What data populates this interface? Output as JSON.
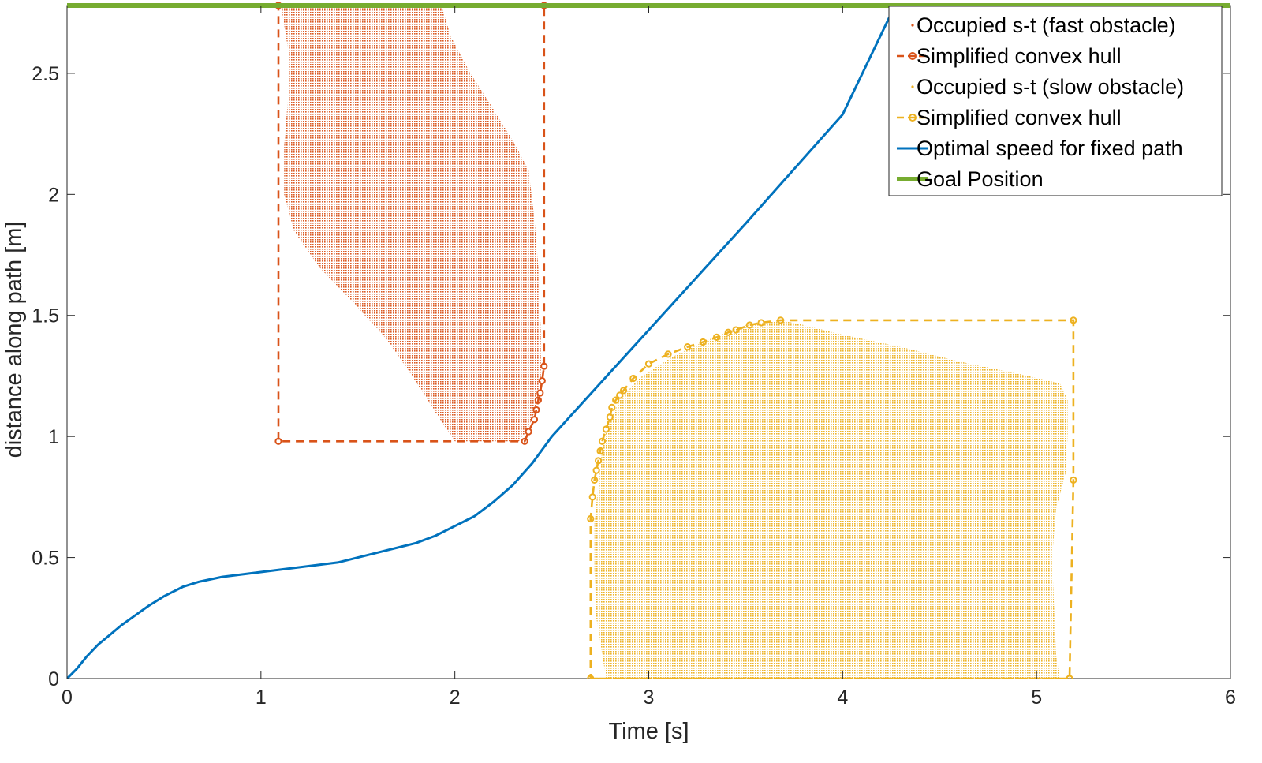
{
  "chart_data": {
    "type": "line",
    "title": "",
    "xlabel": "Time [s]",
    "ylabel": "distance along path [m]",
    "xlim": [
      0,
      6
    ],
    "ylim": [
      0,
      2.78
    ],
    "xticks": [
      0,
      1,
      2,
      3,
      4,
      5,
      6
    ],
    "yticks": [
      0,
      0.5,
      1,
      1.5,
      2,
      2.5
    ],
    "xtick_labels": [
      "0",
      "1",
      "2",
      "3",
      "4",
      "5",
      "6"
    ],
    "ytick_labels": [
      "0",
      "0.5",
      "1",
      "1.5",
      "2",
      "2.5"
    ],
    "grid": false,
    "legend_position": "top-right",
    "series": [
      {
        "name": "Occupied s-t (fast obstacle)",
        "kind": "filled-region",
        "color": "#D95319",
        "polygon": [
          [
            1.1,
            2.78
          ],
          [
            1.93,
            2.78
          ],
          [
            1.98,
            2.65
          ],
          [
            2.08,
            2.5
          ],
          [
            2.2,
            2.35
          ],
          [
            2.3,
            2.22
          ],
          [
            2.38,
            2.1
          ],
          [
            2.41,
            1.9
          ],
          [
            2.43,
            1.7
          ],
          [
            2.44,
            1.5
          ],
          [
            2.45,
            1.3
          ],
          [
            2.44,
            1.2
          ],
          [
            2.41,
            1.1
          ],
          [
            2.37,
            1.02
          ],
          [
            2.33,
            0.98
          ],
          [
            2.0,
            0.98
          ],
          [
            1.9,
            1.1
          ],
          [
            1.78,
            1.25
          ],
          [
            1.65,
            1.4
          ],
          [
            1.48,
            1.55
          ],
          [
            1.3,
            1.7
          ],
          [
            1.17,
            1.85
          ],
          [
            1.12,
            2.0
          ],
          [
            1.12,
            2.2
          ],
          [
            1.14,
            2.4
          ],
          [
            1.14,
            2.6
          ],
          [
            1.12,
            2.7
          ]
        ]
      },
      {
        "name": "Simplified convex hull",
        "kind": "hull",
        "color": "#D95319",
        "points": [
          [
            1.09,
            2.78
          ],
          [
            2.46,
            2.78
          ],
          [
            2.46,
            1.29
          ],
          [
            2.45,
            1.23
          ],
          [
            2.44,
            1.18
          ],
          [
            2.43,
            1.15
          ],
          [
            2.42,
            1.11
          ],
          [
            2.41,
            1.07
          ],
          [
            2.38,
            1.02
          ],
          [
            2.36,
            0.98
          ],
          [
            1.09,
            0.98
          ],
          [
            1.09,
            2.78
          ]
        ]
      },
      {
        "name": "Occupied s-t (slow obstacle)",
        "kind": "filled-region",
        "color": "#EDB120",
        "polygon": [
          [
            2.78,
            0
          ],
          [
            5.12,
            0
          ],
          [
            5.1,
            0.1
          ],
          [
            5.09,
            0.3
          ],
          [
            5.08,
            0.5
          ],
          [
            5.1,
            0.7
          ],
          [
            5.15,
            0.85
          ],
          [
            5.16,
            1.0
          ],
          [
            5.16,
            1.15
          ],
          [
            5.12,
            1.22
          ],
          [
            4.9,
            1.26
          ],
          [
            4.6,
            1.31
          ],
          [
            4.3,
            1.37
          ],
          [
            4.0,
            1.42
          ],
          [
            3.8,
            1.46
          ],
          [
            3.68,
            1.48
          ],
          [
            3.5,
            1.46
          ],
          [
            3.4,
            1.43
          ],
          [
            3.25,
            1.38
          ],
          [
            3.1,
            1.32
          ],
          [
            2.95,
            1.24
          ],
          [
            2.85,
            1.15
          ],
          [
            2.79,
            1.05
          ],
          [
            2.76,
            0.95
          ],
          [
            2.74,
            0.8
          ],
          [
            2.72,
            0.65
          ],
          [
            2.72,
            0.45
          ],
          [
            2.73,
            0.25
          ],
          [
            2.76,
            0.1
          ]
        ]
      },
      {
        "name": "Simplified convex hull",
        "kind": "hull",
        "color": "#EDB120",
        "points": [
          [
            2.7,
            0
          ],
          [
            5.17,
            0
          ],
          [
            5.19,
            0.82
          ],
          [
            5.19,
            1.48
          ],
          [
            3.68,
            1.48
          ],
          [
            3.58,
            1.47
          ],
          [
            3.52,
            1.46
          ],
          [
            3.45,
            1.44
          ],
          [
            3.41,
            1.43
          ],
          [
            3.35,
            1.41
          ],
          [
            3.28,
            1.39
          ],
          [
            3.2,
            1.37
          ],
          [
            3.1,
            1.34
          ],
          [
            3.0,
            1.3
          ],
          [
            2.92,
            1.24
          ],
          [
            2.87,
            1.19
          ],
          [
            2.85,
            1.17
          ],
          [
            2.83,
            1.15
          ],
          [
            2.81,
            1.12
          ],
          [
            2.8,
            1.08
          ],
          [
            2.78,
            1.03
          ],
          [
            2.76,
            0.98
          ],
          [
            2.75,
            0.94
          ],
          [
            2.74,
            0.9
          ],
          [
            2.73,
            0.86
          ],
          [
            2.72,
            0.82
          ],
          [
            2.71,
            0.75
          ],
          [
            2.7,
            0.66
          ],
          [
            2.7,
            0
          ],
          [
            5.17,
            0
          ]
        ]
      },
      {
        "name": "Optimal speed for fixed path",
        "kind": "line",
        "color": "#0072BD",
        "points": [
          [
            0,
            0
          ],
          [
            0.05,
            0.04
          ],
          [
            0.1,
            0.09
          ],
          [
            0.16,
            0.14
          ],
          [
            0.22,
            0.18
          ],
          [
            0.28,
            0.22
          ],
          [
            0.35,
            0.26
          ],
          [
            0.42,
            0.3
          ],
          [
            0.5,
            0.34
          ],
          [
            0.6,
            0.38
          ],
          [
            0.68,
            0.4
          ],
          [
            0.8,
            0.42
          ],
          [
            1.0,
            0.44
          ],
          [
            1.2,
            0.46
          ],
          [
            1.4,
            0.48
          ],
          [
            1.6,
            0.52
          ],
          [
            1.8,
            0.56
          ],
          [
            1.9,
            0.59
          ],
          [
            2.0,
            0.63
          ],
          [
            2.1,
            0.67
          ],
          [
            2.2,
            0.73
          ],
          [
            2.3,
            0.8
          ],
          [
            2.4,
            0.89
          ],
          [
            2.5,
            1.0
          ],
          [
            3.0,
            1.44
          ],
          [
            3.5,
            1.88
          ],
          [
            4.0,
            2.33
          ],
          [
            4.27,
            2.78
          ]
        ]
      },
      {
        "name": "Goal Position",
        "kind": "line",
        "color": "#77AC30",
        "points": [
          [
            0,
            2.78
          ],
          [
            6,
            2.78
          ]
        ]
      }
    ]
  }
}
